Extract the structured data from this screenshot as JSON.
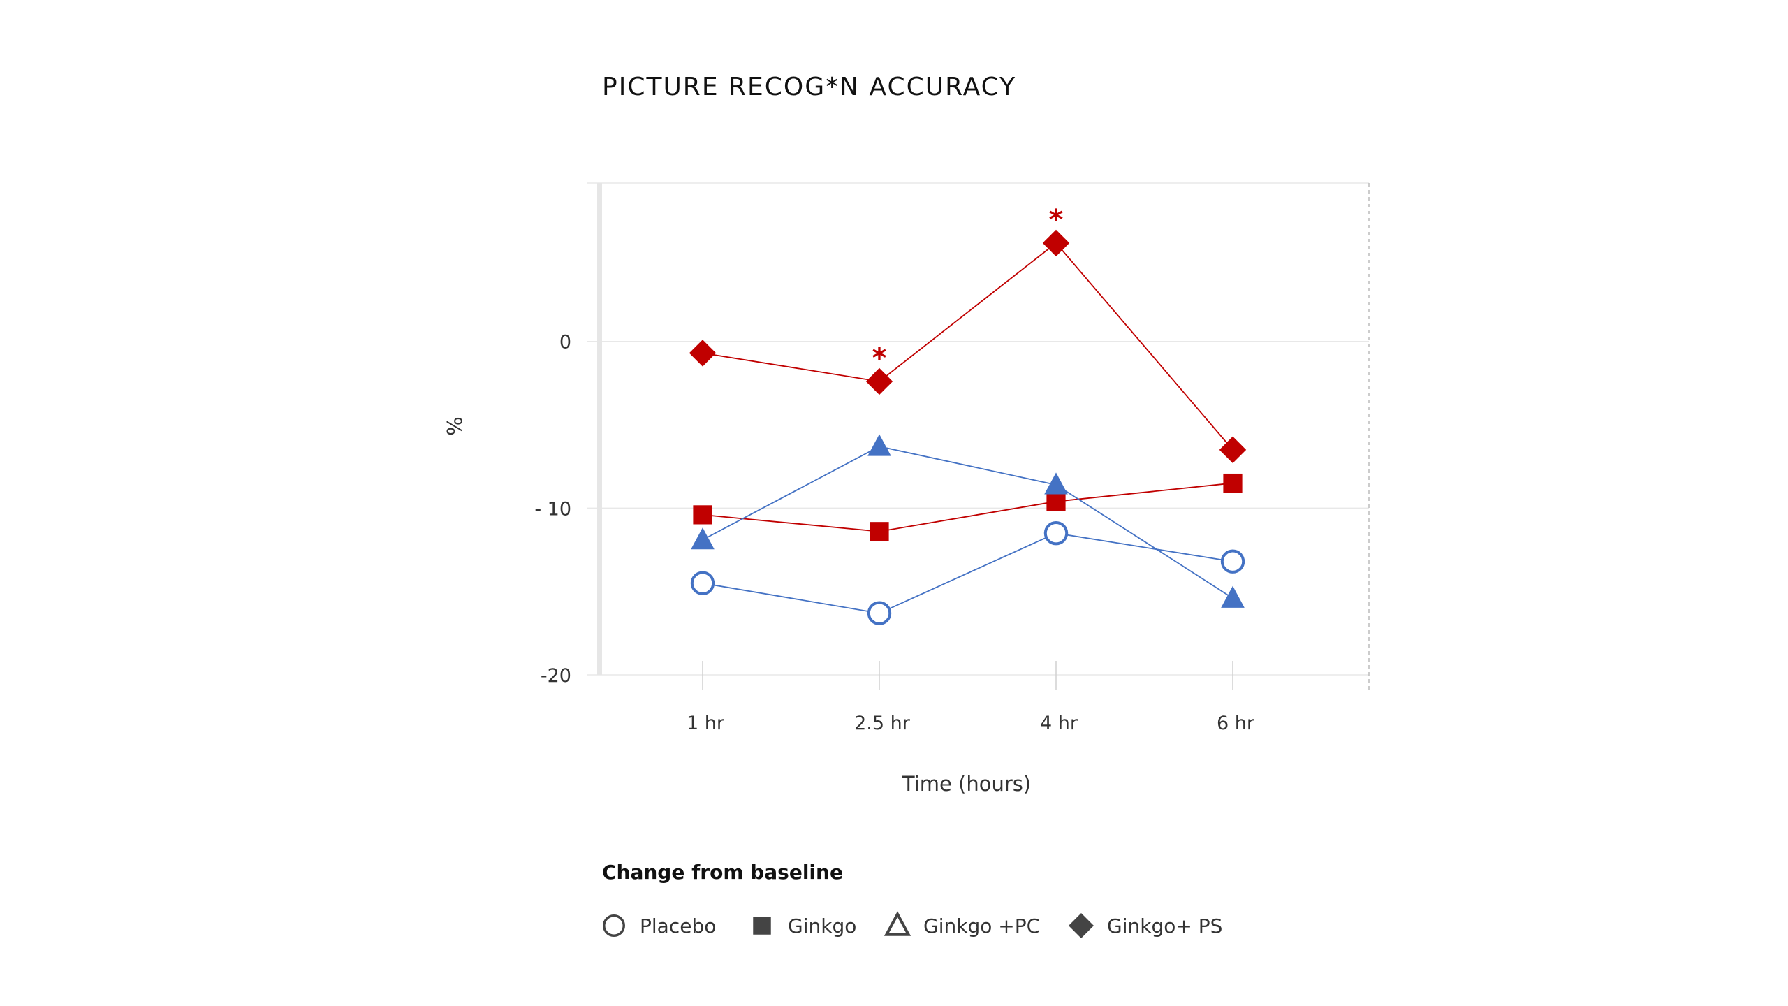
{
  "chart_data": {
    "type": "line",
    "title": "PICTURE RECOG*N ACCURACY",
    "xlabel": "Time (hours)",
    "ylabel": "%",
    "categories": [
      "1 hr",
      "2.5 hr",
      "4 hr",
      "6 hr"
    ],
    "y_ticks": [
      {
        "value": 0,
        "label": "0"
      },
      {
        "value": -10,
        "label": "- 10"
      },
      {
        "value": -20,
        "label": "-20"
      }
    ],
    "ylim": [
      -20,
      9.5
    ],
    "grid": "horizontal",
    "legend_title": "Change from baseline",
    "legend_position": "bottom-left",
    "series": [
      {
        "name": "Placebo",
        "marker": "circle-open",
        "color": "#4472C4",
        "values": [
          -14.5,
          -16.3,
          -11.5,
          -13.2
        ]
      },
      {
        "name": "Ginkgo",
        "marker": "square",
        "color": "#C00000",
        "values": [
          -10.4,
          -11.4,
          -9.6,
          -8.5
        ]
      },
      {
        "name": "Ginkgo +PC",
        "marker": "triangle",
        "color": "#4472C4",
        "values": [
          -11.9,
          -6.3,
          -8.6,
          -15.4
        ]
      },
      {
        "name": "Ginkgo+ PS",
        "marker": "diamond",
        "color": "#C00000",
        "values": [
          -0.7,
          -2.4,
          5.9,
          -6.5
        ]
      }
    ],
    "annotations": [
      {
        "category": "2.5 hr",
        "value": -2.4,
        "text": "*",
        "color": "#C00000"
      },
      {
        "category": "4 hr",
        "value": 5.9,
        "text": "*",
        "color": "#C00000"
      }
    ]
  }
}
